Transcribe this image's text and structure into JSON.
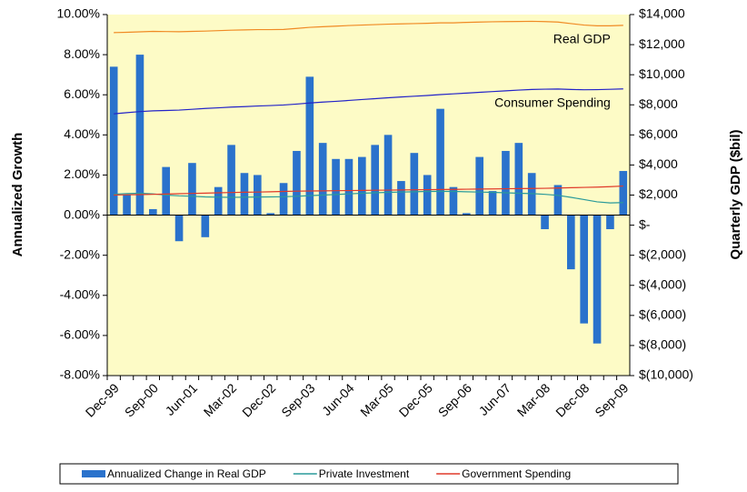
{
  "chart_data": {
    "type": "bar_line",
    "y_title": "Annualized Growth",
    "y2_title": "Quarterly GDP ($bil)",
    "categories": [
      "Dec-99",
      null,
      null,
      "Sep-00",
      null,
      null,
      "Jun-01",
      null,
      null,
      "Mar-02",
      null,
      null,
      "Dec-02",
      null,
      null,
      "Sep-03",
      null,
      null,
      "Jun-04",
      null,
      null,
      "Mar-05",
      null,
      null,
      "Dec-05",
      null,
      null,
      "Sep-06",
      null,
      null,
      "Jun-07",
      null,
      null,
      "Mar-08",
      null,
      null,
      "Dec-08",
      null,
      null,
      "Sep-09"
    ],
    "ylim": [
      -8,
      10
    ],
    "yticks": [
      {
        "value": -8,
        "label": "-8.00%"
      },
      {
        "value": -6,
        "label": "-6.00%"
      },
      {
        "value": -4,
        "label": "-4.00%"
      },
      {
        "value": -2,
        "label": "-2.00%"
      },
      {
        "value": 0,
        "label": "0.00%"
      },
      {
        "value": 2,
        "label": "2.00%"
      },
      {
        "value": 4,
        "label": "4.00%"
      },
      {
        "value": 6,
        "label": "6.00%"
      },
      {
        "value": 8,
        "label": "8.00%"
      },
      {
        "value": 10,
        "label": "10.00%"
      }
    ],
    "y2lim": [
      -10000,
      14000
    ],
    "y2ticks": [
      {
        "value": -10000,
        "label": "$(10,000)"
      },
      {
        "value": -8000,
        "label": "$(8,000)"
      },
      {
        "value": -6000,
        "label": "$(6,000)"
      },
      {
        "value": -4000,
        "label": "$(4,000)"
      },
      {
        "value": -2000,
        "label": "$(2,000)"
      },
      {
        "value": 0,
        "label": "$-"
      },
      {
        "value": 2000,
        "label": "$2,000"
      },
      {
        "value": 4000,
        "label": "$4,000"
      },
      {
        "value": 6000,
        "label": "$6,000"
      },
      {
        "value": 8000,
        "label": "$8,000"
      },
      {
        "value": 10000,
        "label": "$10,000"
      },
      {
        "value": 12000,
        "label": "$12,000"
      },
      {
        "value": 14000,
        "label": "$14,000"
      }
    ],
    "plot_background": "#fdfbc6",
    "series": [
      {
        "name": "Annualized Change in Real GDP",
        "kind": "bar",
        "color": "#2a72cc",
        "axis": "y",
        "values": [
          7.4,
          1.0,
          8.0,
          0.3,
          2.4,
          -1.3,
          2.6,
          -1.1,
          1.4,
          3.5,
          2.1,
          2.0,
          0.1,
          1.6,
          3.2,
          6.9,
          3.6,
          2.8,
          2.8,
          2.9,
          3.5,
          4.0,
          1.7,
          3.1,
          2.0,
          5.3,
          1.4,
          0.1,
          2.9,
          1.2,
          3.2,
          3.6,
          2.1,
          -0.7,
          1.5,
          -2.7,
          -5.4,
          -6.4,
          -0.7,
          2.2
        ]
      },
      {
        "name": "Real GDP",
        "kind": "line",
        "color": "#f08a24",
        "axis": "y2",
        "legend": false,
        "values": [
          12800,
          12820,
          12850,
          12880,
          12870,
          12860,
          12880,
          12900,
          12930,
          12960,
          12980,
          13000,
          13000,
          13010,
          13080,
          13150,
          13190,
          13230,
          13270,
          13300,
          13330,
          13360,
          13380,
          13400,
          13420,
          13450,
          13450,
          13480,
          13500,
          13520,
          13530,
          13540,
          13550,
          13530,
          13500,
          13400,
          13300,
          13250,
          13250,
          13280
        ]
      },
      {
        "name": "Consumer Spending",
        "kind": "line",
        "color": "#2323c8",
        "axis": "y2",
        "legend": false,
        "values": [
          7400,
          7480,
          7550,
          7600,
          7620,
          7650,
          7700,
          7760,
          7800,
          7850,
          7880,
          7920,
          7950,
          7990,
          8050,
          8120,
          8180,
          8230,
          8290,
          8350,
          8410,
          8470,
          8520,
          8570,
          8620,
          8680,
          8730,
          8780,
          8830,
          8880,
          8930,
          8980,
          9020,
          9040,
          9050,
          9020,
          9000,
          9010,
          9030,
          9060
        ]
      },
      {
        "name": "Private Investment",
        "kind": "line",
        "color": "#2a9a9a",
        "axis": "y2",
        "values": [
          2060,
          2100,
          2120,
          2080,
          2000,
          1950,
          1920,
          1880,
          1860,
          1850,
          1860,
          1870,
          1880,
          1890,
          1920,
          1960,
          2000,
          2040,
          2080,
          2120,
          2150,
          2180,
          2200,
          2220,
          2240,
          2250,
          2240,
          2220,
          2200,
          2180,
          2150,
          2120,
          2100,
          2050,
          1980,
          1850,
          1700,
          1550,
          1480,
          1500
        ]
      },
      {
        "name": "Government Spending",
        "kind": "line",
        "color": "#e03a2a",
        "axis": "y2",
        "values": [
          2000,
          2020,
          2030,
          2050,
          2070,
          2090,
          2110,
          2130,
          2150,
          2170,
          2190,
          2200,
          2220,
          2240,
          2260,
          2270,
          2280,
          2290,
          2300,
          2310,
          2320,
          2330,
          2340,
          2350,
          2360,
          2370,
          2380,
          2390,
          2400,
          2410,
          2420,
          2430,
          2440,
          2450,
          2470,
          2490,
          2510,
          2530,
          2560,
          2600
        ]
      }
    ]
  }
}
